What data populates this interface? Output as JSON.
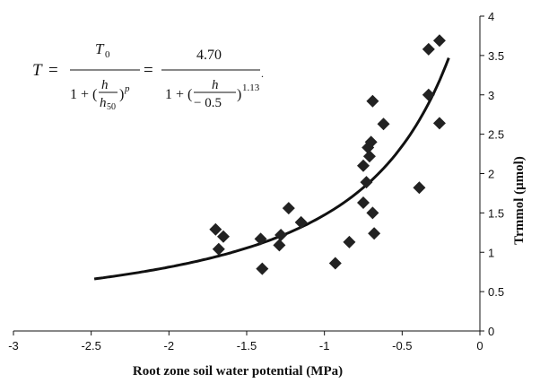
{
  "chart_data": {
    "type": "scatter",
    "xlabel": "Root zone soil water potential (MPa)",
    "ylabel": "Trmmol (μmol)",
    "xlim": [
      -3,
      0
    ],
    "ylim": [
      0,
      4
    ],
    "x_ticks": [
      "-3",
      "-2.5",
      "-2",
      "-1.5",
      "-1",
      "-0.5",
      "0"
    ],
    "y_ticks": [
      "0",
      "0.5",
      "1",
      "1.5",
      "2",
      "2.5",
      "3",
      "3.5",
      "4"
    ],
    "y_axis_position": "right",
    "grid": false,
    "legend": "none",
    "marker": "diamond",
    "marker_color": "#222222",
    "line_color": "#111111",
    "points": [
      {
        "x": -1.7,
        "y": 1.29
      },
      {
        "x": -1.68,
        "y": 1.04
      },
      {
        "x": -1.65,
        "y": 1.2
      },
      {
        "x": -1.41,
        "y": 1.17
      },
      {
        "x": -1.4,
        "y": 0.79
      },
      {
        "x": -1.29,
        "y": 1.09
      },
      {
        "x": -1.28,
        "y": 1.22
      },
      {
        "x": -1.23,
        "y": 1.56
      },
      {
        "x": -1.15,
        "y": 1.38
      },
      {
        "x": -0.93,
        "y": 0.86
      },
      {
        "x": -0.84,
        "y": 1.13
      },
      {
        "x": -0.75,
        "y": 1.63
      },
      {
        "x": -0.75,
        "y": 2.1
      },
      {
        "x": -0.73,
        "y": 1.89
      },
      {
        "x": -0.72,
        "y": 2.33
      },
      {
        "x": -0.71,
        "y": 2.22
      },
      {
        "x": -0.7,
        "y": 2.4
      },
      {
        "x": -0.69,
        "y": 2.92
      },
      {
        "x": -0.69,
        "y": 1.5
      },
      {
        "x": -0.68,
        "y": 1.24
      },
      {
        "x": -0.62,
        "y": 2.63
      },
      {
        "x": -0.39,
        "y": 1.82
      },
      {
        "x": -0.33,
        "y": 3.0
      },
      {
        "x": -0.33,
        "y": 3.58
      },
      {
        "x": -0.26,
        "y": 3.69
      },
      {
        "x": -0.26,
        "y": 2.64
      }
    ],
    "fit": {
      "T0": 4.7,
      "h50": -0.5,
      "p": 1.13,
      "x_range": [
        -2.48,
        -0.2
      ]
    },
    "equation": {
      "T": "T",
      "eq": "=",
      "T0": "T",
      "T0_sub": "0",
      "one_plus": "1 + (",
      "h": "h",
      "h50": "h",
      "h50_sub": "50",
      "close_p": ")",
      "p": "p",
      "val": "4.70",
      "neg": "− 0.5",
      "exp": "1.13",
      "dot": "."
    }
  }
}
